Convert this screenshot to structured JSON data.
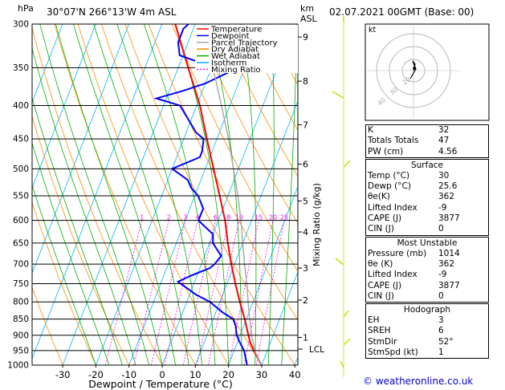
{
  "header": {
    "location": "30°07'N  266°13'W  4m  ASL",
    "datetime": "02.07.2021  00GMT  (Base: 00)",
    "hpa_label": "hPa",
    "km_label": "km",
    "asl_label": "ASL"
  },
  "legend": [
    {
      "label": "Temperature",
      "color": "#ff0000",
      "dash": ""
    },
    {
      "label": "Dewpoint",
      "color": "#0000ff",
      "dash": ""
    },
    {
      "label": "Parcel Trajectory",
      "color": "#aaaaaa",
      "dash": ""
    },
    {
      "label": "Dry Adiabat",
      "color": "#ff8c00",
      "dash": ""
    },
    {
      "label": "Wet Adiabat",
      "color": "#00b000",
      "dash": ""
    },
    {
      "label": "Isotherm",
      "color": "#00b4ff",
      "dash": ""
    },
    {
      "label": "Mixing Ratio",
      "color": "#ff00ff",
      "dash": "2,2"
    }
  ],
  "colors": {
    "temperature": "#ff0000",
    "dewpoint": "#0000ff",
    "parcel": "#aaaaaa",
    "dry_adiabat": "#ff8c00",
    "wet_adiabat": "#00b000",
    "isotherm": "#00b4ff",
    "mixing_ratio": "#ff00ff",
    "footer": "#0000cc",
    "wind_barb": "#c8e000"
  },
  "chart_data": {
    "type": "line",
    "title": "",
    "xlabel": "Dewpoint / Temperature (°C)",
    "ylabel_right": "Mixing Ratio (g/kg)",
    "xlim": [
      -40,
      40
    ],
    "ylim": [
      1000,
      300
    ],
    "y_scale": "log",
    "skew": true,
    "x_ticks": [
      -30,
      -20,
      -10,
      0,
      10,
      20,
      30,
      40
    ],
    "pressure_ticks": [
      300,
      350,
      400,
      450,
      500,
      550,
      600,
      650,
      700,
      750,
      800,
      850,
      900,
      950,
      1000
    ],
    "km_ticks": [
      {
        "label": "1",
        "p": 907
      },
      {
        "label": "2",
        "p": 795
      },
      {
        "label": "3",
        "p": 710
      },
      {
        "label": "4",
        "p": 625
      },
      {
        "label": "5",
        "p": 560
      },
      {
        "label": "6",
        "p": 492
      },
      {
        "label": "7",
        "p": 428
      },
      {
        "label": "8",
        "p": 367
      },
      {
        "label": "9",
        "p": 314
      }
    ],
    "lcl": {
      "label": "LCL",
      "p": 945
    },
    "mixing_ratio_labels": [
      "1",
      "2",
      "3",
      "4",
      "6",
      "8",
      "10",
      "15",
      "20",
      "25"
    ],
    "mixing_ratio_values": [
      1,
      2,
      3,
      4,
      6,
      8,
      10,
      15,
      20,
      25
    ],
    "series": [
      {
        "name": "Temperature",
        "points": [
          [
            1000,
            30
          ],
          [
            975,
            28
          ],
          [
            950,
            26
          ],
          [
            925,
            24
          ],
          [
            900,
            22.5
          ],
          [
            850,
            19.5
          ],
          [
            800,
            16
          ],
          [
            750,
            12.5
          ],
          [
            700,
            9
          ],
          [
            650,
            5.5
          ],
          [
            600,
            2
          ],
          [
            550,
            -2.5
          ],
          [
            500,
            -7.5
          ],
          [
            450,
            -13
          ],
          [
            400,
            -19
          ],
          [
            350,
            -27
          ],
          [
            300,
            -36
          ]
        ]
      },
      {
        "name": "Dewpoint",
        "points": [
          [
            1000,
            25.6
          ],
          [
            950,
            23
          ],
          [
            920,
            20.5
          ],
          [
            900,
            19
          ],
          [
            870,
            17.5
          ],
          [
            850,
            16
          ],
          [
            830,
            12
          ],
          [
            800,
            7
          ],
          [
            780,
            2
          ],
          [
            760,
            -2
          ],
          [
            745,
            -5
          ],
          [
            730,
            -2
          ],
          [
            710,
            3
          ],
          [
            700,
            4
          ],
          [
            680,
            5
          ],
          [
            650,
            1
          ],
          [
            630,
            0
          ],
          [
            610,
            -4
          ],
          [
            600,
            -6
          ],
          [
            575,
            -6
          ],
          [
            550,
            -9
          ],
          [
            535,
            -12
          ],
          [
            520,
            -14
          ],
          [
            500,
            -20
          ],
          [
            480,
            -13
          ],
          [
            470,
            -13
          ],
          [
            450,
            -14
          ],
          [
            440,
            -17
          ],
          [
            400,
            -25
          ],
          [
            390,
            -33
          ],
          [
            380,
            -26
          ],
          [
            370,
            -20
          ],
          [
            355,
            -14
          ],
          [
            345,
            -23
          ],
          [
            335,
            -31
          ],
          [
            320,
            -33
          ],
          [
            305,
            -33
          ],
          [
            300,
            -32
          ]
        ]
      },
      {
        "name": "Parcel Trajectory",
        "points": [
          [
            1000,
            30
          ],
          [
            950,
            26.2
          ],
          [
            900,
            23.5
          ],
          [
            850,
            21
          ],
          [
            800,
            18.5
          ],
          [
            750,
            16
          ],
          [
            700,
            13
          ],
          [
            650,
            10
          ],
          [
            600,
            6.8
          ],
          [
            550,
            3
          ],
          [
            500,
            -1.5
          ],
          [
            450,
            -6.5
          ],
          [
            400,
            -12.5
          ],
          [
            350,
            -19.5
          ],
          [
            300,
            -28
          ]
        ]
      }
    ]
  },
  "hodograph": {
    "label": "kt",
    "ring_labels": [
      "20",
      "30",
      "40"
    ]
  },
  "indices": {
    "top": [
      {
        "label": "K",
        "value": "32"
      },
      {
        "label": "Totals Totals",
        "value": "47"
      },
      {
        "label": "PW (cm)",
        "value": "4.56"
      }
    ],
    "surface": {
      "title": "Surface",
      "rows": [
        {
          "label": "Temp (°C)",
          "value": "30"
        },
        {
          "label": "Dewp (°C)",
          "value": "25.6"
        },
        {
          "label": "θe(K)",
          "value": "362"
        },
        {
          "label": "Lifted Index",
          "value": "-9"
        },
        {
          "label": "CAPE (J)",
          "value": "3877"
        },
        {
          "label": "CIN (J)",
          "value": "0"
        }
      ]
    },
    "most_unstable": {
      "title": "Most Unstable",
      "rows": [
        {
          "label": "Pressure (mb)",
          "value": "1014"
        },
        {
          "label": "θe (K)",
          "value": "362"
        },
        {
          "label": "Lifted Index",
          "value": "-9"
        },
        {
          "label": "CAPE (J)",
          "value": "3877"
        },
        {
          "label": "CIN (J)",
          "value": "0"
        }
      ]
    },
    "hodograph": {
      "title": "Hodograph",
      "rows": [
        {
          "label": "EH",
          "value": "3"
        },
        {
          "label": "SREH",
          "value": "6"
        },
        {
          "label": "StmDir",
          "value": "52°"
        },
        {
          "label": "StmSpd (kt)",
          "value": "1"
        }
      ]
    }
  },
  "footer": {
    "copyright": "© weatheronline.co.uk"
  }
}
